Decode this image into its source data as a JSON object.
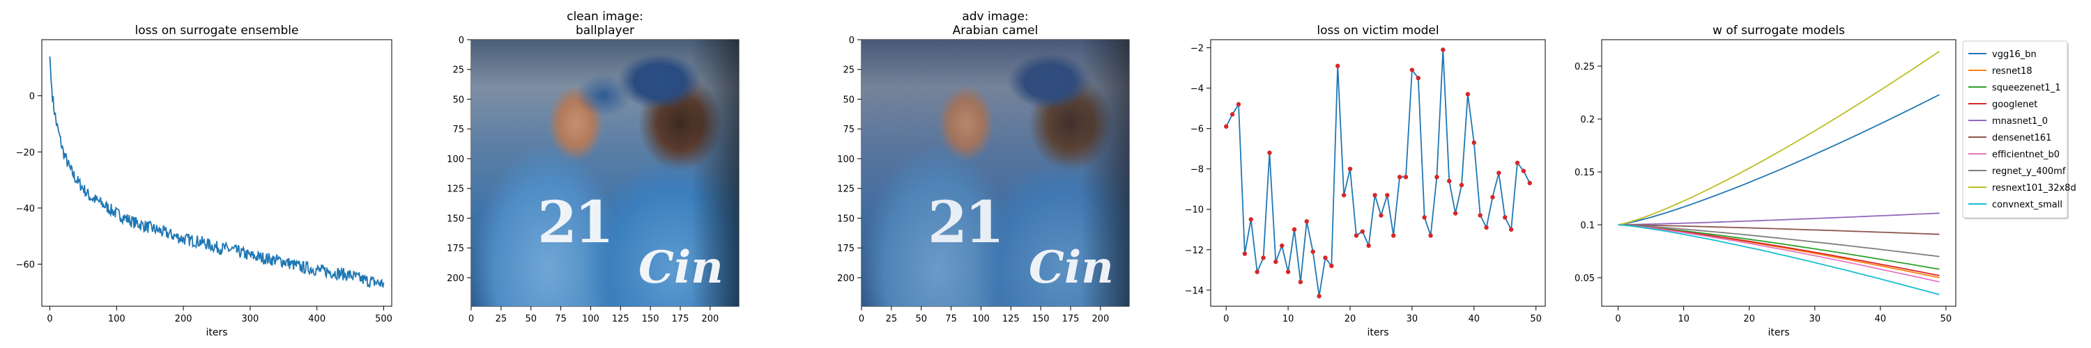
{
  "chart_data": [
    {
      "type": "line",
      "title": "loss on surrogate ensemble",
      "xlabel": "iters",
      "ylabel": "",
      "xlim": [
        -12,
        512
      ],
      "ylim": [
        -75,
        20
      ],
      "xticks": [
        0,
        100,
        200,
        300,
        400,
        500
      ],
      "yticks": [
        0,
        -20,
        -40,
        -60
      ],
      "grid": false,
      "series": [
        {
          "color": "#1f77b4",
          "x": [
            0,
            2,
            4,
            6,
            8,
            10,
            15,
            20,
            30,
            40,
            50,
            60,
            75,
            100,
            125,
            150,
            175,
            200,
            225,
            250,
            275,
            300,
            325,
            350,
            375,
            400,
            425,
            450,
            475,
            500
          ],
          "values": [
            14,
            5,
            0,
            -4,
            -7,
            -10,
            -15,
            -20,
            -26,
            -30,
            -33,
            -36,
            -38,
            -42,
            -45,
            -47,
            -49,
            -51,
            -52,
            -54,
            -55,
            -57,
            -58,
            -59,
            -61,
            -62,
            -63,
            -64,
            -66,
            -67
          ]
        }
      ]
    },
    {
      "type": "image",
      "title": "clean image:\nballplayer",
      "xlim": [
        0,
        224
      ],
      "ylim": [
        224,
        0
      ],
      "xticks": [
        0,
        25,
        50,
        75,
        100,
        125,
        150,
        175,
        200
      ],
      "yticks": [
        0,
        25,
        50,
        75,
        100,
        125,
        150,
        175,
        200
      ],
      "photo_text": [
        "21",
        "Cin"
      ]
    },
    {
      "type": "image",
      "title": "adv image:\nArabian camel",
      "xlim": [
        0,
        224
      ],
      "ylim": [
        224,
        0
      ],
      "xticks": [
        0,
        25,
        50,
        75,
        100,
        125,
        150,
        175,
        200
      ],
      "yticks": [
        0,
        25,
        50,
        75,
        100,
        125,
        150,
        175,
        200
      ],
      "photo_text": [
        "21",
        "Cin"
      ]
    },
    {
      "type": "line",
      "title": "loss on victim model",
      "xlabel": "iters",
      "ylabel": "",
      "xlim": [
        -2.5,
        51.5
      ],
      "ylim": [
        -14.8,
        -1.6
      ],
      "xticks": [
        0,
        10,
        20,
        30,
        40,
        50
      ],
      "yticks": [
        -2,
        -4,
        -6,
        -8,
        -10,
        -12,
        -14
      ],
      "grid": false,
      "markers": true,
      "series": [
        {
          "color": "#1f77b4",
          "marker_color": "#d62728",
          "x": [
            0,
            1,
            2,
            3,
            4,
            5,
            6,
            7,
            8,
            9,
            10,
            11,
            12,
            13,
            14,
            15,
            16,
            17,
            18,
            19,
            20,
            21,
            22,
            23,
            24,
            25,
            26,
            27,
            28,
            29,
            30,
            31,
            32,
            33,
            34,
            35,
            36,
            37,
            38,
            39,
            40,
            41,
            42,
            43,
            44,
            45,
            46,
            47,
            48,
            49
          ],
          "values": [
            -5.9,
            -5.3,
            -4.8,
            -12.2,
            -10.5,
            -13.1,
            -12.4,
            -7.2,
            -12.6,
            -11.8,
            -13.1,
            -11.0,
            -13.6,
            -10.6,
            -12.1,
            -14.3,
            -12.4,
            -12.8,
            -2.9,
            -9.3,
            -8.0,
            -11.3,
            -11.1,
            -11.8,
            -9.3,
            -10.3,
            -9.3,
            -11.3,
            -8.4,
            -8.4,
            -3.1,
            -3.5,
            -10.4,
            -11.3,
            -8.4,
            -2.1,
            -8.6,
            -10.2,
            -8.8,
            -4.3,
            -6.7,
            -10.3,
            -10.9,
            -9.4,
            -8.2,
            -10.4,
            -11.0,
            -7.7,
            -8.1,
            -8.7
          ]
        }
      ]
    },
    {
      "type": "line",
      "title": "w of surrogate models",
      "xlabel": "iters",
      "ylabel": "",
      "xlim": [
        -2.5,
        51.5
      ],
      "ylim": [
        0.023,
        0.275
      ],
      "xticks": [
        0,
        10,
        20,
        30,
        40,
        50
      ],
      "yticks": [
        0.05,
        0.1,
        0.15,
        0.2,
        0.25
      ],
      "grid": false,
      "legend": "outside-right",
      "x_range": [
        0,
        49
      ],
      "series": [
        {
          "name": "vgg16_bn",
          "color": "#1f77b4",
          "start": 0.1,
          "end": 0.223
        },
        {
          "name": "resnet18",
          "color": "#ff7f0e",
          "start": 0.1,
          "end": 0.05
        },
        {
          "name": "squeezenet1_1",
          "color": "#2ca02c",
          "start": 0.1,
          "end": 0.058
        },
        {
          "name": "googlenet",
          "color": "#d62728",
          "start": 0.1,
          "end": 0.052
        },
        {
          "name": "mnasnet1_0",
          "color": "#9467bd",
          "start": 0.1,
          "end": 0.111
        },
        {
          "name": "densenet161",
          "color": "#8c564b",
          "start": 0.1,
          "end": 0.091
        },
        {
          "name": "efficientnet_b0",
          "color": "#e377c2",
          "start": 0.1,
          "end": 0.046
        },
        {
          "name": "regnet_y_400mf",
          "color": "#7f7f7f",
          "start": 0.1,
          "end": 0.07
        },
        {
          "name": "resnext101_32x8d",
          "color": "#bcbd22",
          "start": 0.1,
          "end": 0.264
        },
        {
          "name": "convnext_small",
          "color": "#17becf",
          "start": 0.1,
          "end": 0.034
        }
      ]
    }
  ]
}
